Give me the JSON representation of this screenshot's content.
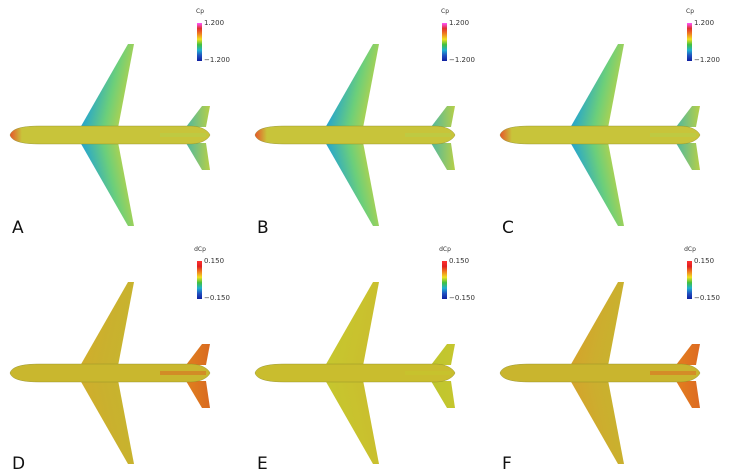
{
  "panels": [
    {
      "letter": "A",
      "legend": {
        "title": "Cp",
        "max": "1.200",
        "min": "−1.200"
      },
      "colormap": "cp",
      "colors": {
        "wing_le": "#1a3fb8",
        "wing_mid": "#2aa8c8",
        "wing_inner": "#6ccf7a",
        "wing_root": "#b7d24a",
        "fuselage": "#c8c43a",
        "tail": "#b6cf48",
        "tail_le": "#4fb8a0",
        "nose": "#e8552a"
      }
    },
    {
      "letter": "B",
      "legend": {
        "title": "Cp",
        "max": "1.200",
        "min": "−1.200"
      },
      "colormap": "cp",
      "colors": {
        "wing_le": "#1a3fb8",
        "wing_mid": "#2aa8c8",
        "wing_inner": "#6ccf7a",
        "wing_root": "#b7d24a",
        "fuselage": "#c8c43a",
        "tail": "#b6cf48",
        "tail_le": "#4fb8a0",
        "nose": "#e8552a"
      }
    },
    {
      "letter": "C",
      "legend": {
        "title": "Cp",
        "max": "1.200",
        "min": "−1.200"
      },
      "colormap": "cp",
      "colors": {
        "wing_le": "#1a3fb8",
        "wing_mid": "#2aa8c8",
        "wing_inner": "#6ccf7a",
        "wing_root": "#b7d24a",
        "fuselage": "#c8c43a",
        "tail": "#b6cf48",
        "tail_le": "#4fb8a0",
        "nose": "#e8552a"
      }
    },
    {
      "letter": "D",
      "legend": {
        "title": "dCp",
        "max": "0.150",
        "min": "−0.150"
      },
      "colormap": "dcp",
      "colors": {
        "wing_le": "#d4a12a",
        "wing_mid": "#cfae2c",
        "wing_inner": "#c9b12e",
        "wing_root": "#c8b42e",
        "fuselage": "#c9b72e",
        "tail": "#d96a20",
        "tail_le": "#e0801e",
        "nose": "#c9b72e"
      }
    },
    {
      "letter": "E",
      "legend": {
        "title": "dCp",
        "max": "0.150",
        "min": "−0.150"
      },
      "colormap": "dcp",
      "colors": {
        "wing_le": "#c2c42e",
        "wing_mid": "#c6c62e",
        "wing_inner": "#c9c22e",
        "wing_root": "#c9be2e",
        "fuselage": "#c9bd2e",
        "tail": "#c5c62e",
        "tail_le": "#bfc62e",
        "nose": "#c9bd2e"
      }
    },
    {
      "letter": "F",
      "legend": {
        "title": "dCp",
        "max": "0.150",
        "min": "−0.150"
      },
      "colormap": "dcp",
      "colors": {
        "wing_le": "#d8952a",
        "wing_mid": "#d3a52c",
        "wing_inner": "#ccae2e",
        "wing_root": "#c8b22e",
        "fuselage": "#c9b52e",
        "tail": "#dd6a22",
        "tail_le": "#e37f1e",
        "nose": "#c9b52e"
      }
    }
  ]
}
